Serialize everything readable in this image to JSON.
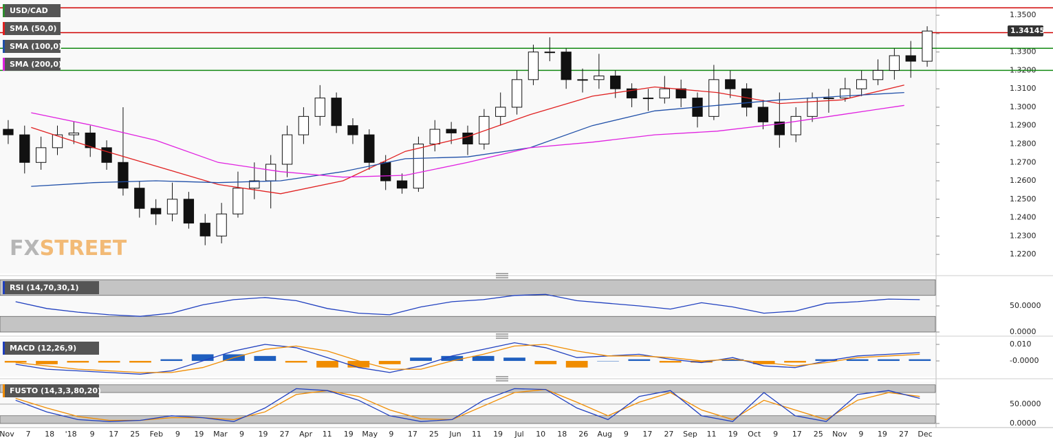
{
  "watermark": [
    "FX",
    "STREET"
  ],
  "time_axis": {
    "labels": [
      "Nov",
      "7",
      "18",
      "'18",
      "9",
      "17",
      "25",
      "Feb",
      "9",
      "19",
      "Mar",
      "9",
      "19",
      "27",
      "Apr",
      "11",
      "19",
      "May",
      "9",
      "17",
      "25",
      "Jun",
      "11",
      "19",
      "Jul",
      "10",
      "18",
      "26",
      "Aug",
      "9",
      "17",
      "27",
      "Sep",
      "11",
      "19",
      "Oct",
      "9",
      "17",
      "25",
      "Nov",
      "9",
      "19",
      "27",
      "Dec"
    ]
  },
  "chart_data": [
    {
      "type": "candlestick",
      "title": "USD/CAD",
      "title_color": "#2e8b2e",
      "open": [
        1.288,
        1.285,
        1.27,
        1.278,
        1.285,
        1.286,
        1.278,
        1.27,
        1.256,
        1.245,
        1.242,
        1.25,
        1.237,
        1.23,
        1.242,
        1.256,
        1.26,
        1.269,
        1.285,
        1.295,
        1.305,
        1.29,
        1.285,
        1.27,
        1.26,
        1.256,
        1.28,
        1.288,
        1.286,
        1.28,
        1.295,
        1.3,
        1.315,
        1.33,
        1.33,
        1.315,
        1.315,
        1.317,
        1.31,
        1.305,
        1.305,
        1.31,
        1.305,
        1.295,
        1.315,
        1.31,
        1.3,
        1.292,
        1.285,
        1.295,
        1.305,
        1.305,
        1.31,
        1.315,
        1.32,
        1.328,
        1.325
      ],
      "high": [
        1.293,
        1.29,
        1.284,
        1.29,
        1.292,
        1.29,
        1.282,
        1.3,
        1.26,
        1.25,
        1.259,
        1.254,
        1.242,
        1.248,
        1.265,
        1.27,
        1.274,
        1.29,
        1.3,
        1.312,
        1.308,
        1.294,
        1.288,
        1.274,
        1.264,
        1.284,
        1.293,
        1.292,
        1.29,
        1.299,
        1.308,
        1.32,
        1.334,
        1.338,
        1.332,
        1.321,
        1.329,
        1.32,
        1.313,
        1.31,
        1.317,
        1.315,
        1.308,
        1.323,
        1.32,
        1.313,
        1.304,
        1.308,
        1.3,
        1.308,
        1.31,
        1.316,
        1.32,
        1.326,
        1.332,
        1.336,
        1.344
      ],
      "low": [
        1.28,
        1.264,
        1.266,
        1.274,
        1.28,
        1.273,
        1.266,
        1.252,
        1.24,
        1.236,
        1.238,
        1.234,
        1.225,
        1.226,
        1.24,
        1.25,
        1.245,
        1.262,
        1.28,
        1.29,
        1.286,
        1.28,
        1.266,
        1.255,
        1.253,
        1.254,
        1.276,
        1.28,
        1.274,
        1.277,
        1.29,
        1.296,
        1.312,
        1.325,
        1.31,
        1.308,
        1.31,
        1.305,
        1.3,
        1.298,
        1.302,
        1.3,
        1.289,
        1.293,
        1.305,
        1.295,
        1.288,
        1.278,
        1.281,
        1.292,
        1.297,
        1.303,
        1.306,
        1.312,
        1.315,
        1.316,
        1.322
      ],
      "close": [
        1.285,
        1.27,
        1.278,
        1.285,
        1.286,
        1.278,
        1.27,
        1.256,
        1.245,
        1.242,
        1.25,
        1.237,
        1.23,
        1.242,
        1.256,
        1.26,
        1.269,
        1.285,
        1.295,
        1.305,
        1.29,
        1.285,
        1.27,
        1.26,
        1.256,
        1.28,
        1.288,
        1.286,
        1.28,
        1.295,
        1.3,
        1.315,
        1.33,
        1.33,
        1.315,
        1.315,
        1.317,
        1.31,
        1.305,
        1.305,
        1.31,
        1.305,
        1.295,
        1.315,
        1.31,
        1.3,
        1.292,
        1.285,
        1.295,
        1.305,
        1.305,
        1.31,
        1.315,
        1.32,
        1.328,
        1.325,
        1.3414
      ],
      "series": [
        {
          "name": "SMA (50,0)",
          "color": "#e02020",
          "values": [
            1.289,
            1.278,
            1.268,
            1.258,
            1.253,
            1.26,
            1.276,
            1.284,
            1.296,
            1.306,
            1.311,
            1.308,
            1.302,
            1.304,
            1.312
          ]
        },
        {
          "name": "SMA (100,0)",
          "color": "#1f4fa8",
          "values": [
            1.257,
            1.259,
            1.26,
            1.259,
            1.26,
            1.265,
            1.272,
            1.273,
            1.278,
            1.29,
            1.298,
            1.301,
            1.304,
            1.306,
            1.308
          ]
        },
        {
          "name": "SMA (200,0)",
          "color": "#e020e0",
          "values": [
            1.297,
            1.29,
            1.282,
            1.27,
            1.265,
            1.262,
            1.263,
            1.27,
            1.278,
            1.281,
            1.285,
            1.287,
            1.291,
            1.296,
            1.301
          ]
        }
      ],
      "levels": [
        {
          "value": 1.354,
          "color": "#d00000"
        },
        {
          "value": 1.3405,
          "color": "#d00000"
        },
        {
          "value": 1.332,
          "color": "#118811"
        },
        {
          "value": 1.32,
          "color": "#118811"
        }
      ],
      "last_price": 1.34145,
      "ylim": [
        1.2107,
        1.3564
      ],
      "yticks": [
        {
          "value": 1.22,
          "label": "1.2200"
        },
        {
          "value": 1.23,
          "label": "1.2300"
        },
        {
          "value": 1.24,
          "label": "1.2400"
        },
        {
          "value": 1.25,
          "label": "1.2500"
        },
        {
          "value": 1.26,
          "label": "1.2600"
        },
        {
          "value": 1.27,
          "label": "1.2700"
        },
        {
          "value": 1.28,
          "label": "1.2800"
        },
        {
          "value": 1.29,
          "label": "1.2900"
        },
        {
          "value": 1.3,
          "label": "1.3000"
        },
        {
          "value": 1.31,
          "label": "1.3100"
        },
        {
          "value": 1.32,
          "label": "1.3200"
        },
        {
          "value": 1.33,
          "label": "1.3300"
        },
        {
          "value": 1.34,
          "label": "1.3400"
        },
        {
          "value": 1.35,
          "label": "1.3500"
        }
      ],
      "grid": false
    },
    {
      "type": "line",
      "title": "RSI (14,70,30,1)",
      "title_color": "#1f3fbf",
      "series": [
        {
          "color": "#1f3fbf",
          "values": [
            58,
            45,
            38,
            33,
            30,
            36,
            52,
            62,
            66,
            60,
            45,
            36,
            33,
            48,
            58,
            62,
            70,
            72,
            60,
            55,
            50,
            44,
            56,
            48,
            36,
            40,
            55,
            58,
            63,
            62
          ]
        }
      ],
      "bands": [
        [
          70,
          100
        ],
        [
          0,
          30
        ]
      ],
      "ylim": [
        0,
        100
      ],
      "yticks": [
        {
          "value": 50,
          "label": "50.0000"
        },
        {
          "value": 0,
          "label": "0.0000"
        }
      ],
      "grid": false
    },
    {
      "type": "line",
      "title": "MACD (12,26,9)",
      "title_color": "#1f3fbf",
      "series": [
        {
          "type": "bar",
          "color": "#1f5fbf",
          "neg_color": "#f08c00",
          "values": [
            -0.001,
            -0.002,
            -0.001,
            -0.001,
            -0.001,
            0.001,
            0.004,
            0.004,
            0.003,
            -0.001,
            -0.004,
            -0.004,
            -0.002,
            0.002,
            0.003,
            0.003,
            0.002,
            -0.002,
            -0.004,
            0.0,
            0.001,
            -0.001,
            -0.001,
            0.001,
            -0.002,
            -0.001,
            0.001,
            0.001,
            0.001,
            0.001
          ]
        },
        {
          "color": "#1f3fbf",
          "values": [
            -0.002,
            -0.005,
            -0.006,
            -0.007,
            -0.008,
            -0.006,
            0.0,
            0.006,
            0.01,
            0.008,
            0.002,
            -0.004,
            -0.007,
            -0.003,
            0.003,
            0.007,
            0.011,
            0.008,
            0.002,
            0.003,
            0.004,
            0.001,
            -0.001,
            0.002,
            -0.003,
            -0.004,
            0.0,
            0.003,
            0.004,
            0.005
          ]
        },
        {
          "color": "#f08c00",
          "values": [
            -0.001,
            -0.003,
            -0.005,
            -0.006,
            -0.007,
            -0.007,
            -0.004,
            0.002,
            0.007,
            0.009,
            0.006,
            0.0,
            -0.005,
            -0.005,
            0.0,
            0.004,
            0.009,
            0.01,
            0.006,
            0.003,
            0.003,
            0.002,
            0.0,
            0.001,
            -0.001,
            -0.003,
            -0.001,
            0.002,
            0.003,
            0.004
          ]
        }
      ],
      "ylim": [
        -0.0083,
        0.0125
      ],
      "yticks": [
        {
          "value": 0.01,
          "label": "0.010"
        },
        {
          "value": 0,
          "label": "-0.0000"
        }
      ],
      "grid": false
    },
    {
      "type": "line",
      "title": "FUSTO (14,3,3,80,20)",
      "title_color": "#f08c00",
      "series": [
        {
          "color": "#f08c00",
          "values": [
            65,
            40,
            18,
            8,
            8,
            15,
            15,
            10,
            30,
            75,
            85,
            70,
            35,
            12,
            10,
            45,
            80,
            88,
            55,
            20,
            55,
            80,
            35,
            10,
            60,
            35,
            10,
            60,
            80,
            70
          ]
        },
        {
          "color": "#1f3fbf",
          "values": [
            60,
            30,
            10,
            5,
            8,
            20,
            15,
            5,
            40,
            90,
            85,
            60,
            20,
            5,
            10,
            60,
            90,
            88,
            40,
            10,
            70,
            85,
            20,
            5,
            80,
            20,
            5,
            75,
            85,
            65
          ]
        }
      ],
      "bands": [
        [
          80,
          100
        ],
        [
          0,
          20
        ]
      ],
      "ylim": [
        -3.5,
        105
      ],
      "yticks": [
        {
          "value": 50,
          "label": "50.0000"
        },
        {
          "value": 0,
          "label": "0.0000"
        }
      ],
      "grid": true
    }
  ]
}
